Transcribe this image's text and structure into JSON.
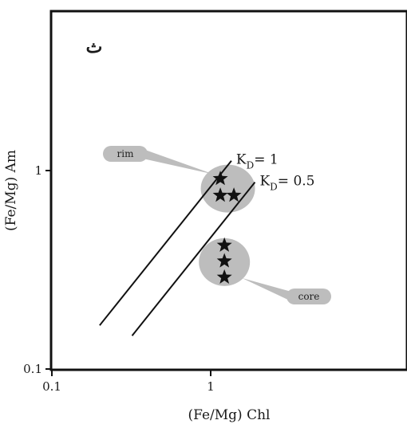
{
  "chart_data": {
    "type": "scatter",
    "panel_label": "ث",
    "xlabel": "(Fe/Mg) Chl",
    "ylabel": "(Fe/Mg) Am",
    "x_scale": "log",
    "y_scale": "log",
    "xlim": [
      0.1,
      10
    ],
    "ylim": [
      0.1,
      10
    ],
    "x_ticks": [
      {
        "value": 0.1,
        "label": "0.1"
      },
      {
        "value": 1,
        "label": "1"
      }
    ],
    "y_ticks": [
      {
        "value": 0.1,
        "label": "0.1"
      },
      {
        "value": 1,
        "label": "1"
      }
    ],
    "grid": false,
    "groups": [
      {
        "label": "rim",
        "points": [
          {
            "x": 1.15,
            "y": 0.91
          },
          {
            "x": 1.15,
            "y": 0.75
          },
          {
            "x": 1.4,
            "y": 0.75
          }
        ]
      },
      {
        "label": "core",
        "points": [
          {
            "x": 1.22,
            "y": 0.42
          },
          {
            "x": 1.22,
            "y": 0.35
          },
          {
            "x": 1.22,
            "y": 0.29
          }
        ]
      }
    ],
    "reference_lines": [
      {
        "label_main": "K",
        "label_sub": "D",
        "label_rest": "= 1",
        "x_range": [
          0.2,
          1.35
        ]
      },
      {
        "label_main": "K",
        "label_sub": "D",
        "label_rest": "= 0.5",
        "x_range": [
          0.32,
          1.9
        ]
      }
    ]
  }
}
